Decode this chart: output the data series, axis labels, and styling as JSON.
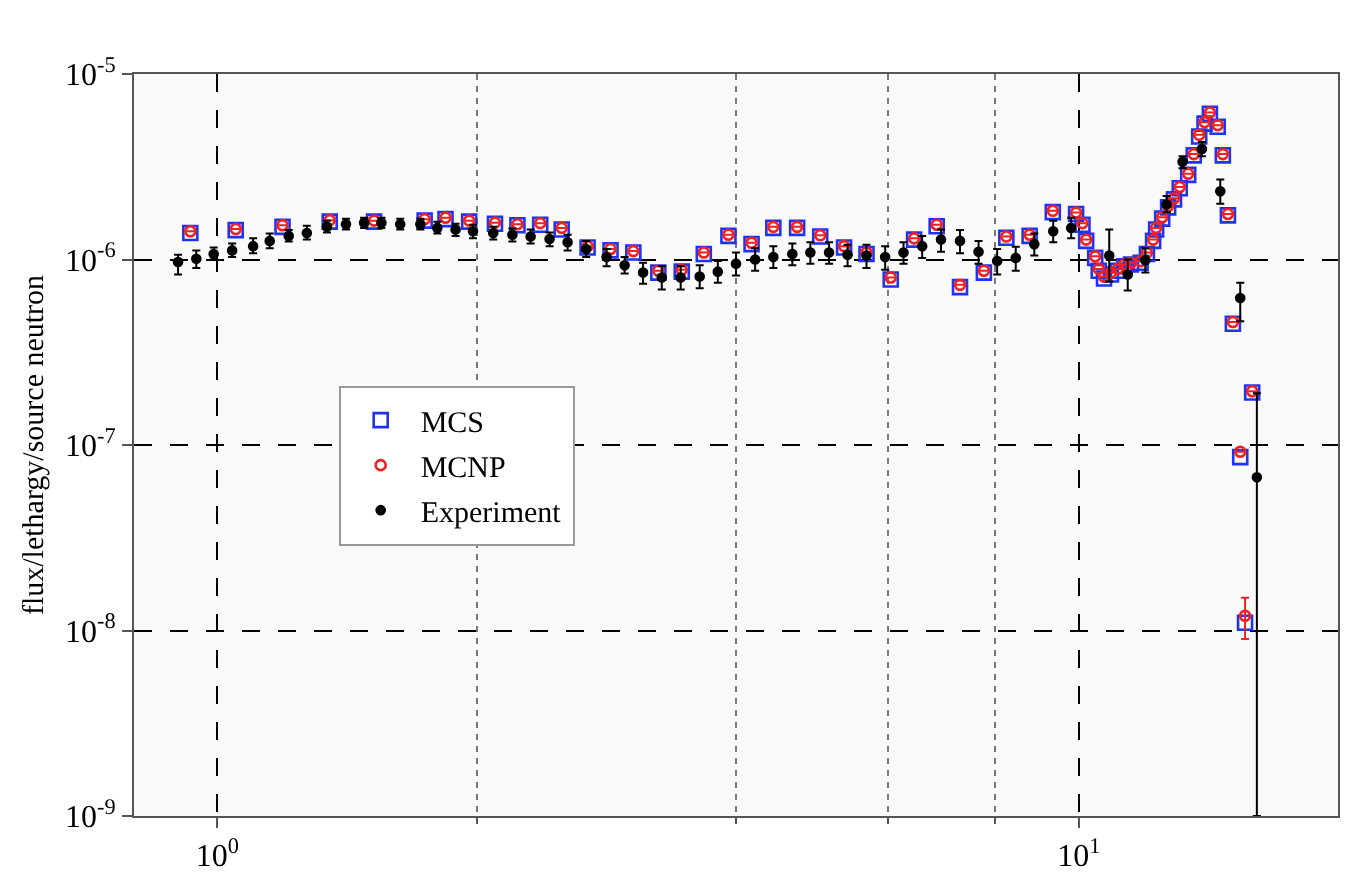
{
  "chart_data": {
    "type": "scatter",
    "ylabel": "flux/lethargy/source neutron",
    "log": "xy",
    "grid": true,
    "legend": "left",
    "xlim": [
      0.8,
      20
    ],
    "xticks": [
      {
        "value": 1,
        "label": "10$^{0}$"
      },
      {
        "value": 2,
        "label": null
      },
      {
        "value": 4,
        "label": null
      },
      {
        "value": 6,
        "label": null
      },
      {
        "value": 8,
        "label": null
      },
      {
        "value": 10,
        "label": "10$^{1}$"
      }
    ],
    "ylim": [
      1e-09,
      1e-05
    ],
    "yticks": [
      {
        "value": 1e-09,
        "label": "10$^{-9}$"
      },
      {
        "value": 1e-08,
        "label": "10$^{-8}$"
      },
      {
        "value": 1e-07,
        "label": "10$^{-7}$"
      },
      {
        "value": 1e-06,
        "label": "10$^{-6}$"
      },
      {
        "value": 1e-05,
        "label": "10$^{-5}$"
      }
    ],
    "series": [
      {
        "name": "MCS",
        "color": "#2233ee",
        "marker": "square",
        "x": [
          0.93,
          1.05,
          1.19,
          1.35,
          1.52,
          1.74,
          1.84,
          1.96,
          2.1,
          2.23,
          2.37,
          2.51,
          2.69,
          2.86,
          3.04,
          3.25,
          3.46,
          3.67,
          3.92,
          4.17,
          4.42,
          4.71,
          5.01,
          5.34,
          5.67,
          6.05,
          6.44,
          6.84,
          7.28,
          7.76,
          8.24,
          8.77,
          9.33,
          9.93,
          10.1,
          10.2,
          10.45,
          10.55,
          10.7,
          10.9,
          11.1,
          11.3,
          11.5,
          11.8,
          12.0,
          12.2,
          12.3,
          12.5,
          12.7,
          12.9,
          13.1,
          13.4,
          13.6,
          13.8,
          14.0,
          14.2,
          14.5,
          14.7,
          14.9,
          15.1,
          15.4,
          15.6,
          15.9
        ],
        "values": [
          1.39e-06,
          1.44e-06,
          1.5e-06,
          1.6e-06,
          1.6e-06,
          1.62e-06,
          1.65e-06,
          1.6e-06,
          1.56e-06,
          1.53e-06,
          1.54e-06,
          1.45e-06,
          1.16e-06,
          1.12e-06,
          1.09e-06,
          8.5e-07,
          8.6e-07,
          1.07e-06,
          1.34e-06,
          1.21e-06,
          1.48e-06,
          1.48e-06,
          1.33e-06,
          1.16e-06,
          1.07e-06,
          7.8e-07,
          1.28e-06,
          1.51e-06,
          7.1e-07,
          8.5e-07,
          1.31e-06,
          1.34e-06,
          1.8e-06,
          1.76e-06,
          1.54e-06,
          1.26e-06,
          1.02e-06,
          8.7e-07,
          7.9e-07,
          8.3e-07,
          8.7e-07,
          9.2e-07,
          9.4e-07,
          9.6e-07,
          1.07e-06,
          1.26e-06,
          1.45e-06,
          1.66e-06,
          1.91e-06,
          2.11e-06,
          2.42e-06,
          2.86e-06,
          3.64e-06,
          4.6e-06,
          5.4e-06,
          6.1e-06,
          5.2e-06,
          3.64e-06,
          1.73e-06,
          4.5e-07,
          8.6e-08,
          1.1e-08,
          1.92e-07
        ]
      },
      {
        "name": "MCNP",
        "color": "#ee2222",
        "marker": "circle",
        "x": [
          0.93,
          1.05,
          1.19,
          1.35,
          1.52,
          1.74,
          1.84,
          1.96,
          2.1,
          2.23,
          2.37,
          2.51,
          2.69,
          2.86,
          3.04,
          3.25,
          3.46,
          3.67,
          3.92,
          4.17,
          4.42,
          4.71,
          5.01,
          5.34,
          5.67,
          6.05,
          6.44,
          6.84,
          7.28,
          7.76,
          8.24,
          8.77,
          9.33,
          9.93,
          10.1,
          10.2,
          10.45,
          10.55,
          10.7,
          10.9,
          11.1,
          11.3,
          11.5,
          11.8,
          12.0,
          12.2,
          12.3,
          12.5,
          12.7,
          12.9,
          13.1,
          13.4,
          13.6,
          13.8,
          14.0,
          14.2,
          14.5,
          14.7,
          14.9,
          15.1,
          15.4,
          15.6,
          15.9
        ],
        "values": [
          1.42e-06,
          1.46e-06,
          1.53e-06,
          1.63e-06,
          1.62e-06,
          1.65e-06,
          1.68e-06,
          1.62e-06,
          1.58e-06,
          1.55e-06,
          1.57e-06,
          1.48e-06,
          1.18e-06,
          1.14e-06,
          1.11e-06,
          8.7e-07,
          8.8e-07,
          1.09e-06,
          1.36e-06,
          1.23e-06,
          1.5e-06,
          1.5e-06,
          1.35e-06,
          1.18e-06,
          1.09e-06,
          8e-07,
          1.3e-06,
          1.54e-06,
          7.3e-07,
          8.7e-07,
          1.33e-06,
          1.36e-06,
          1.83e-06,
          1.79e-06,
          1.57e-06,
          1.28e-06,
          1.04e-06,
          8.9e-07,
          8.1e-07,
          8.5e-07,
          8.9e-07,
          9.4e-07,
          9.6e-07,
          9.8e-07,
          1.09e-06,
          1.28e-06,
          1.48e-06,
          1.69e-06,
          1.94e-06,
          2.14e-06,
          2.46e-06,
          2.9e-06,
          3.7e-06,
          4.7e-06,
          5.5e-06,
          6.2e-06,
          5.3e-06,
          3.7e-06,
          1.76e-06,
          4.6e-07,
          9.2e-08,
          1.2e-08,
          1.95e-07
        ],
        "errors": [
          null,
          null,
          null,
          null,
          null,
          null,
          null,
          null,
          null,
          null,
          null,
          null,
          null,
          null,
          null,
          null,
          null,
          null,
          null,
          null,
          null,
          null,
          null,
          null,
          null,
          null,
          null,
          null,
          null,
          null,
          null,
          null,
          null,
          null,
          null,
          null,
          null,
          null,
          null,
          null,
          null,
          null,
          null,
          null,
          null,
          null,
          null,
          null,
          null,
          null,
          null,
          null,
          null,
          null,
          null,
          null,
          null,
          null,
          null,
          null,
          null,
          [
            9e-09,
            1.5e-08
          ],
          null
        ]
      },
      {
        "name": "Experiment",
        "color": "#000000",
        "marker": "circle",
        "x": [
          0.9,
          0.945,
          0.99,
          1.04,
          1.1,
          1.15,
          1.21,
          1.27,
          1.34,
          1.41,
          1.48,
          1.55,
          1.63,
          1.72,
          1.8,
          1.89,
          1.98,
          2.09,
          2.2,
          2.31,
          2.43,
          2.55,
          2.68,
          2.83,
          2.97,
          3.12,
          3.28,
          3.45,
          3.63,
          3.81,
          4.0,
          4.21,
          4.42,
          4.65,
          4.88,
          5.13,
          5.39,
          5.67,
          5.96,
          6.26,
          6.58,
          6.92,
          7.28,
          7.65,
          8.04,
          8.45,
          8.88,
          9.34,
          9.8,
          10.85,
          11.4,
          11.95,
          12.65,
          13.2,
          13.9,
          14.6,
          15.4,
          16.1
        ],
        "values": [
          9.7e-07,
          1.01e-06,
          1.07e-06,
          1.12e-06,
          1.18e-06,
          1.26e-06,
          1.34e-06,
          1.39e-06,
          1.5e-06,
          1.55e-06,
          1.58e-06,
          1.58e-06,
          1.55e-06,
          1.55e-06,
          1.48e-06,
          1.45e-06,
          1.42e-06,
          1.39e-06,
          1.36e-06,
          1.33e-06,
          1.29e-06,
          1.24e-06,
          1.14e-06,
          1.03e-06,
          9.3e-07,
          8.5e-07,
          8e-07,
          8e-07,
          8.1e-07,
          8.6e-07,
          9.5e-07,
          1e-06,
          1.03e-06,
          1.07e-06,
          1.09e-06,
          1.09e-06,
          1.06e-06,
          1.05e-06,
          1.03e-06,
          1.09e-06,
          1.18e-06,
          1.28e-06,
          1.26e-06,
          1.1e-06,
          9.8e-07,
          1.02e-06,
          1.21e-06,
          1.42e-06,
          1.48e-06,
          1.05e-06,
          8.3e-07,
          9.9e-07,
          1.98e-06,
          3.36e-06,
          3.94e-06,
          2.33e-06,
          6.2e-07,
          6.7e-08
        ],
        "errors": [
          [
            8.3e-07,
            1.06e-06
          ],
          [
            9e-07,
            1.12e-06
          ],
          [
            1e-06,
            1.16e-06
          ],
          [
            1.03e-06,
            1.22e-06
          ],
          [
            1.08e-06,
            1.3e-06
          ],
          [
            1.15e-06,
            1.38e-06
          ],
          [
            1.25e-06,
            1.44e-06
          ],
          [
            1.28e-06,
            1.52e-06
          ],
          [
            1.4e-06,
            1.62e-06
          ],
          [
            1.45e-06,
            1.66e-06
          ],
          [
            1.48e-06,
            1.68e-06
          ],
          [
            1.48e-06,
            1.68e-06
          ],
          [
            1.45e-06,
            1.66e-06
          ],
          [
            1.45e-06,
            1.66e-06
          ],
          [
            1.38e-06,
            1.6e-06
          ],
          [
            1.34e-06,
            1.56e-06
          ],
          [
            1.3e-06,
            1.54e-06
          ],
          [
            1.28e-06,
            1.5e-06
          ],
          [
            1.25e-06,
            1.47e-06
          ],
          [
            1.22e-06,
            1.45e-06
          ],
          [
            1.18e-06,
            1.4e-06
          ],
          [
            1.12e-06,
            1.36e-06
          ],
          [
            1.03e-06,
            1.26e-06
          ],
          [
            9.2e-07,
            1.14e-06
          ],
          [
            8.4e-07,
            1.03e-06
          ],
          [
            7.4e-07,
            9.6e-07
          ],
          [
            6.9e-07,
            9.2e-07
          ],
          [
            6.9e-07,
            9.2e-07
          ],
          [
            7e-07,
            9.3e-07
          ],
          [
            7.5e-07,
            9.8e-07
          ],
          [
            8.2e-07,
            1.09e-06
          ],
          [
            8.7e-07,
            1.15e-06
          ],
          [
            9e-07,
            1.18e-06
          ],
          [
            9.3e-07,
            1.22e-06
          ],
          [
            9.5e-07,
            1.24e-06
          ],
          [
            9.5e-07,
            1.24e-06
          ],
          [
            9.2e-07,
            1.2e-06
          ],
          [
            9e-07,
            1.2e-06
          ],
          [
            8.8e-07,
            1.18e-06
          ],
          [
            9.5e-07,
            1.24e-06
          ],
          [
            1.02e-06,
            1.34e-06
          ],
          [
            1.1e-06,
            1.45e-06
          ],
          [
            1.08e-06,
            1.44e-06
          ],
          [
            9.5e-07,
            1.26e-06
          ],
          [
            8.3e-07,
            1.14e-06
          ],
          [
            8.7e-07,
            1.17e-06
          ],
          [
            1.05e-06,
            1.38e-06
          ],
          [
            1.24e-06,
            1.62e-06
          ],
          [
            1.3e-06,
            1.68e-06
          ],
          [
            7.6e-07,
            1.45e-06
          ],
          [
            6.8e-07,
            1e-06
          ],
          [
            8.5e-07,
            1.15e-06
          ],
          [
            1.8e-06,
            2.2e-06
          ],
          [
            3.1e-06,
            3.6e-06
          ],
          [
            3.6e-06,
            4.3e-06
          ],
          [
            2e-06,
            2.7e-06
          ],
          [
            4.65e-07,
            7.5e-07
          ],
          [
            1e-09,
            1.9e-07
          ]
        ]
      }
    ]
  }
}
